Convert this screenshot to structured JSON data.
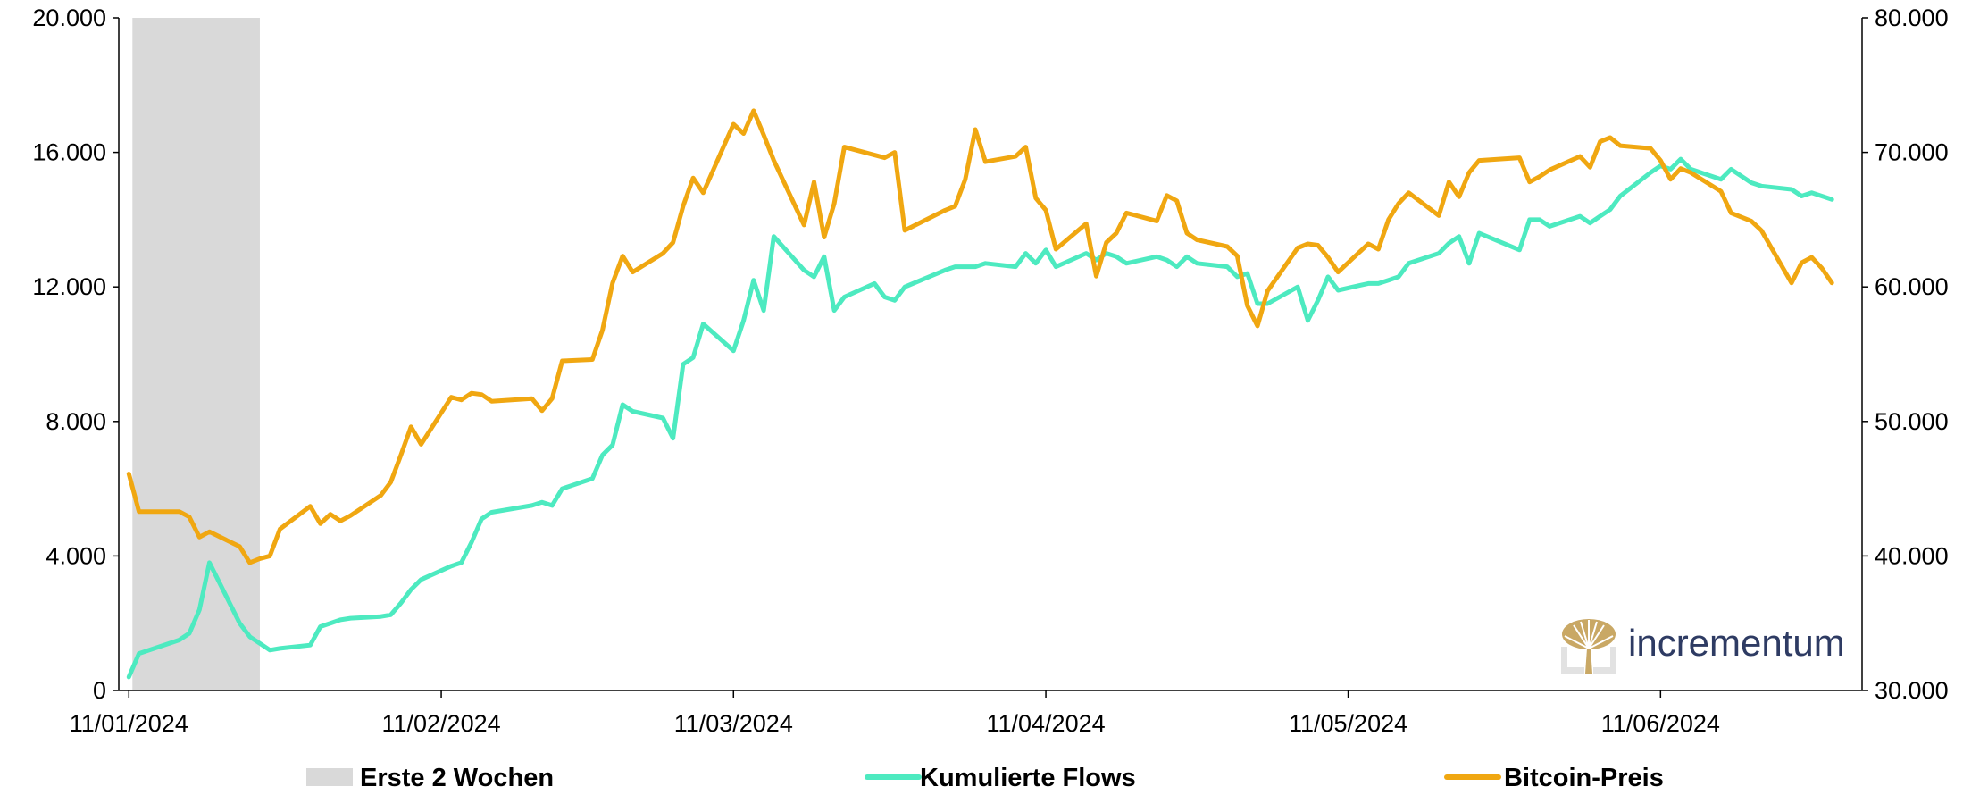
{
  "chart_data": {
    "type": "line",
    "title": "",
    "x": [
      "11/01/2024",
      "12/01/2024",
      "16/01/2024",
      "17/01/2024",
      "18/01/2024",
      "19/01/2024",
      "22/01/2024",
      "23/01/2024",
      "24/01/2024",
      "25/01/2024",
      "26/01/2024",
      "29/01/2024",
      "30/01/2024",
      "31/01/2024",
      "01/02/2024",
      "02/02/2024",
      "05/02/2024",
      "06/02/2024",
      "07/02/2024",
      "08/02/2024",
      "09/02/2024",
      "12/02/2024",
      "13/02/2024",
      "14/02/2024",
      "15/02/2024",
      "16/02/2024",
      "20/02/2024",
      "21/02/2024",
      "22/02/2024",
      "23/02/2024",
      "26/02/2024",
      "27/02/2024",
      "28/02/2024",
      "29/02/2024",
      "01/03/2024",
      "04/03/2024",
      "05/03/2024",
      "06/03/2024",
      "07/03/2024",
      "08/03/2024",
      "11/03/2024",
      "12/03/2024",
      "13/03/2024",
      "14/03/2024",
      "15/03/2024",
      "18/03/2024",
      "19/03/2024",
      "20/03/2024",
      "21/03/2024",
      "22/03/2024",
      "25/03/2024",
      "26/03/2024",
      "27/03/2024",
      "28/03/2024",
      "01/04/2024",
      "02/04/2024",
      "03/04/2024",
      "04/04/2024",
      "05/04/2024",
      "08/04/2024",
      "09/04/2024",
      "10/04/2024",
      "11/04/2024",
      "12/04/2024",
      "15/04/2024",
      "16/04/2024",
      "17/04/2024",
      "18/04/2024",
      "19/04/2024",
      "22/04/2024",
      "23/04/2024",
      "24/04/2024",
      "25/04/2024",
      "26/04/2024",
      "29/04/2024",
      "30/04/2024",
      "01/05/2024",
      "02/05/2024",
      "03/05/2024",
      "06/05/2024",
      "07/05/2024",
      "08/05/2024",
      "09/05/2024",
      "10/05/2024",
      "13/05/2024",
      "14/05/2024",
      "15/05/2024",
      "16/05/2024",
      "17/05/2024",
      "20/05/2024",
      "21/05/2024",
      "22/05/2024",
      "23/05/2024",
      "24/05/2024",
      "28/05/2024",
      "29/05/2024",
      "30/05/2024",
      "31/05/2024",
      "03/06/2024",
      "04/06/2024",
      "05/06/2024",
      "06/06/2024",
      "07/06/2024",
      "10/06/2024",
      "11/06/2024",
      "12/06/2024",
      "13/06/2024",
      "14/06/2024",
      "17/06/2024",
      "18/06/2024",
      "20/06/2024",
      "21/06/2024",
      "24/06/2024",
      "25/06/2024",
      "26/06/2024",
      "27/06/2024",
      "28/06/2024"
    ],
    "x_ticks": [
      "11/01/2024",
      "11/02/2024",
      "11/03/2024",
      "11/04/2024",
      "11/05/2024",
      "11/06/2024"
    ],
    "series": [
      {
        "name": "Kumulierte Flows",
        "axis": "left",
        "color": "#4deac0",
        "values": [
          400,
          1100,
          1500,
          1700,
          2400,
          3800,
          2000,
          1600,
          1400,
          1200,
          1250,
          1350,
          1900,
          2000,
          2100,
          2150,
          2200,
          2250,
          2600,
          3000,
          3300,
          3700,
          3800,
          4400,
          5100,
          5300,
          5500,
          5600,
          5500,
          6000,
          6300,
          7000,
          7300,
          8500,
          8300,
          8100,
          7500,
          9700,
          9900,
          10900,
          10100,
          11000,
          12200,
          11300,
          13500,
          12500,
          12300,
          12900,
          11300,
          11700,
          12100,
          11700,
          11600,
          12000,
          12500,
          12600,
          12600,
          12600,
          12700,
          12600,
          13000,
          12700,
          13100,
          12600,
          13000,
          12800,
          13000,
          12900,
          12700,
          12900,
          12800,
          12600,
          12900,
          12700,
          12600,
          12300,
          12400,
          11500,
          11500,
          12000,
          11000,
          11600,
          12300,
          11900,
          12100,
          12100,
          12200,
          12300,
          12700,
          13000,
          13300,
          13500,
          12700,
          13600,
          13100,
          14000,
          14000,
          13800,
          14100,
          13900,
          14100,
          14300,
          14700,
          15400,
          15600,
          15500,
          15800,
          15500,
          15200,
          15500,
          15100,
          15000,
          14900,
          14700,
          14800,
          14700,
          14600
        ]
      },
      {
        "name": "Bitcoin-Preis",
        "axis": "right",
        "color": "#f0a711",
        "values": [
          46100,
          43300,
          43300,
          42900,
          41400,
          41800,
          40700,
          39500,
          39800,
          40000,
          42000,
          43700,
          42400,
          43100,
          42600,
          43000,
          44500,
          45500,
          47500,
          49600,
          48300,
          51800,
          51600,
          52100,
          52000,
          51500,
          51700,
          50800,
          51700,
          54500,
          54600,
          56800,
          60300,
          62300,
          61100,
          62500,
          63300,
          66000,
          68100,
          67000,
          72100,
          71400,
          73100,
          71300,
          69400,
          64600,
          67800,
          63700,
          66200,
          70400,
          69800,
          69600,
          70000,
          64200,
          65700,
          66000,
          68000,
          71700,
          69300,
          69700,
          70400,
          66600,
          65700,
          62800,
          64700,
          60800,
          63300,
          64000,
          65500,
          64900,
          66800,
          66400,
          64000,
          63500,
          63000,
          62300,
          58600,
          57100,
          59700,
          62900,
          63200,
          63100,
          62200,
          61100,
          63200,
          62800,
          65000,
          66200,
          67000,
          65300,
          67800,
          66700,
          68500,
          69400,
          69600,
          67800,
          68200,
          68700,
          69700,
          68900,
          70800,
          71100,
          70500,
          70300,
          69400,
          68000,
          68800,
          68500,
          67100,
          65500,
          64900,
          64200,
          60300,
          61800,
          62200,
          61400,
          60300
        ]
      },
      {
        "name": "Erste 2 Wochen",
        "type": "shaded-span",
        "color": "#d9d9d9",
        "x_from": "11/01/2024",
        "x_to": "24/01/2024"
      }
    ],
    "yleft": {
      "ylim": [
        0,
        20000
      ],
      "ticks": [
        "0",
        "4.000",
        "8.000",
        "12.000",
        "16.000",
        "20.000"
      ]
    },
    "yright": {
      "ylim": [
        30000,
        80000
      ],
      "ticks": [
        "30.000",
        "40.000",
        "50.000",
        "60.000",
        "70.000",
        "80.000"
      ]
    },
    "legend": {
      "position": "bottom",
      "items": [
        {
          "label": "Erste 2 Wochen",
          "color": "#d9d9d9",
          "kind": "box"
        },
        {
          "label": "Kumulierte Flows",
          "color": "#4deac0",
          "kind": "line"
        },
        {
          "label": "Bitcoin-Preis",
          "color": "#f0a711",
          "kind": "line"
        }
      ]
    },
    "grid": false
  },
  "brand": {
    "name": "incrementum",
    "logo_icon": "tree-icon",
    "logo_color": "#c9a865"
  }
}
